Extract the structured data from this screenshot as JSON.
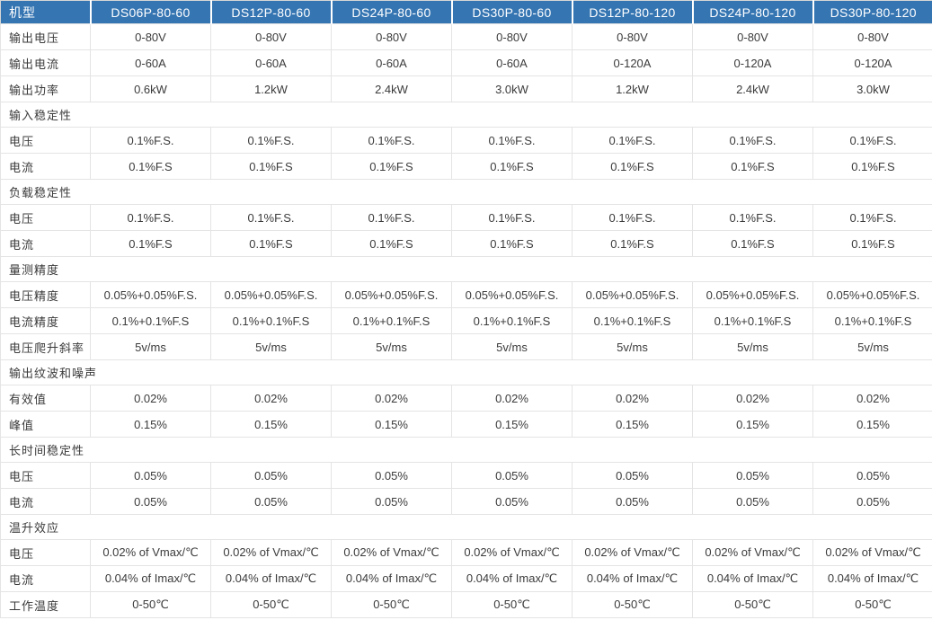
{
  "accent_color": "#3575B2",
  "border_color": "#e4e4e4",
  "header_text_color": "#ffffff",
  "table": {
    "header": [
      "机型",
      "DS06P-80-60",
      "DS12P-80-60",
      "DS24P-80-60",
      "DS30P-80-60",
      "DS12P-80-120",
      "DS24P-80-120",
      "DS30P-80-120"
    ],
    "rows": [
      {
        "type": "data",
        "label": "输出电压",
        "values": [
          "0-80V",
          "0-80V",
          "0-80V",
          "0-80V",
          "0-80V",
          "0-80V",
          "0-80V"
        ]
      },
      {
        "type": "data",
        "label": "输出电流",
        "values": [
          "0-60A",
          "0-60A",
          "0-60A",
          "0-60A",
          "0-120A",
          "0-120A",
          "0-120A"
        ]
      },
      {
        "type": "data",
        "label": "输出功率",
        "values": [
          "0.6kW",
          "1.2kW",
          "2.4kW",
          "3.0kW",
          "1.2kW",
          "2.4kW",
          "3.0kW"
        ]
      },
      {
        "type": "section",
        "label": "输入稳定性"
      },
      {
        "type": "data",
        "label": "电压",
        "values": [
          "0.1%F.S.",
          "0.1%F.S.",
          "0.1%F.S.",
          "0.1%F.S.",
          "0.1%F.S.",
          "0.1%F.S.",
          "0.1%F.S."
        ]
      },
      {
        "type": "data",
        "label": "电流",
        "values": [
          "0.1%F.S",
          "0.1%F.S",
          "0.1%F.S",
          "0.1%F.S",
          "0.1%F.S",
          "0.1%F.S",
          "0.1%F.S"
        ]
      },
      {
        "type": "section",
        "label": "负载稳定性"
      },
      {
        "type": "data",
        "label": "电压",
        "values": [
          "0.1%F.S.",
          "0.1%F.S.",
          "0.1%F.S.",
          "0.1%F.S.",
          "0.1%F.S.",
          "0.1%F.S.",
          "0.1%F.S."
        ]
      },
      {
        "type": "data",
        "label": "电流",
        "values": [
          "0.1%F.S",
          "0.1%F.S",
          "0.1%F.S",
          "0.1%F.S",
          "0.1%F.S",
          "0.1%F.S",
          "0.1%F.S"
        ]
      },
      {
        "type": "section",
        "label": "量测精度"
      },
      {
        "type": "data",
        "label": "电压精度",
        "values": [
          "0.05%+0.05%F.S.",
          "0.05%+0.05%F.S.",
          "0.05%+0.05%F.S.",
          "0.05%+0.05%F.S.",
          "0.05%+0.05%F.S.",
          "0.05%+0.05%F.S.",
          "0.05%+0.05%F.S."
        ]
      },
      {
        "type": "data",
        "label": "电流精度",
        "values": [
          "0.1%+0.1%F.S",
          "0.1%+0.1%F.S",
          "0.1%+0.1%F.S",
          "0.1%+0.1%F.S",
          "0.1%+0.1%F.S",
          "0.1%+0.1%F.S",
          "0.1%+0.1%F.S"
        ]
      },
      {
        "type": "data",
        "label": "电压爬升斜率",
        "values": [
          "5v/ms",
          "5v/ms",
          "5v/ms",
          "5v/ms",
          "5v/ms",
          "5v/ms",
          "5v/ms"
        ]
      },
      {
        "type": "section",
        "label": "输出纹波和噪声"
      },
      {
        "type": "data",
        "label": "有效值",
        "values": [
          "0.02%",
          "0.02%",
          "0.02%",
          "0.02%",
          "0.02%",
          "0.02%",
          "0.02%"
        ]
      },
      {
        "type": "data",
        "label": "峰值",
        "values": [
          "0.15%",
          "0.15%",
          "0.15%",
          "0.15%",
          "0.15%",
          "0.15%",
          "0.15%"
        ]
      },
      {
        "type": "section",
        "label": "长时间稳定性"
      },
      {
        "type": "data",
        "label": "电压",
        "values": [
          "0.05%",
          "0.05%",
          "0.05%",
          "0.05%",
          "0.05%",
          "0.05%",
          "0.05%"
        ]
      },
      {
        "type": "data",
        "label": "电流",
        "values": [
          "0.05%",
          "0.05%",
          "0.05%",
          "0.05%",
          "0.05%",
          "0.05%",
          "0.05%"
        ]
      },
      {
        "type": "section",
        "label": "温升效应"
      },
      {
        "type": "data",
        "label": "电压",
        "values": [
          "0.02% of Vmax/℃",
          "0.02% of Vmax/℃",
          "0.02% of Vmax/℃",
          "0.02% of Vmax/℃",
          "0.02% of Vmax/℃",
          "0.02% of Vmax/℃",
          "0.02% of Vmax/℃"
        ]
      },
      {
        "type": "data",
        "label": "电流",
        "values": [
          "0.04% of Imax/℃",
          "0.04% of Imax/℃",
          "0.04% of Imax/℃",
          "0.04% of Imax/℃",
          "0.04% of Imax/℃",
          "0.04% of Imax/℃",
          "0.04% of Imax/℃"
        ]
      },
      {
        "type": "data",
        "label": "工作温度",
        "values": [
          "0-50℃",
          "0-50℃",
          "0-50℃",
          "0-50℃",
          "0-50℃",
          "0-50℃",
          "0-50℃"
        ]
      }
    ]
  }
}
